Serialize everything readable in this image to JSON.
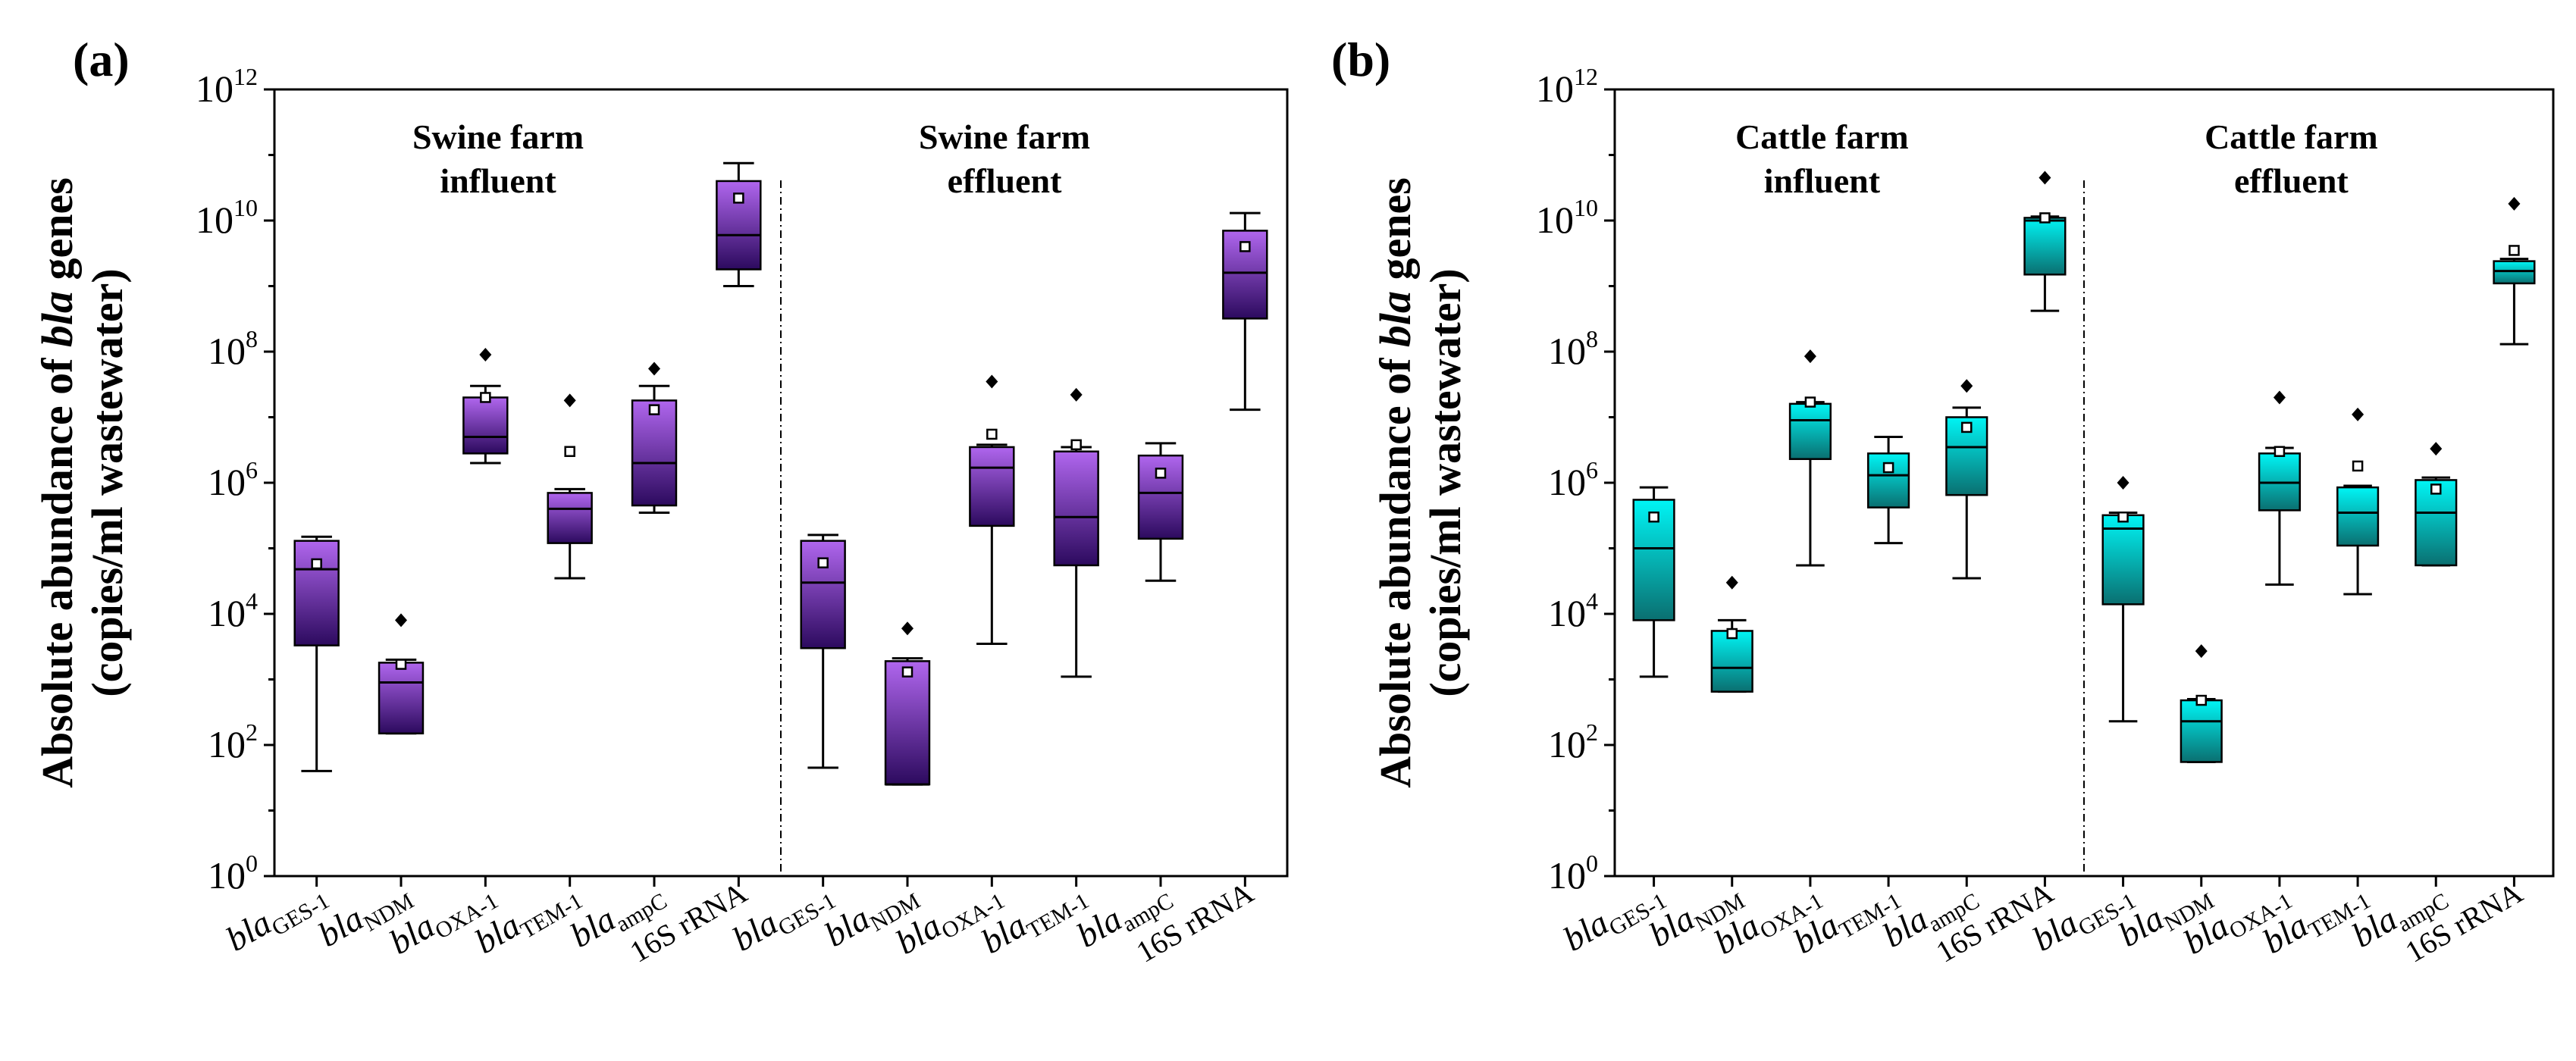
{
  "chart_data": [
    {
      "panel": "(a)",
      "type": "box",
      "scale": "log10",
      "ylim_exp": [
        0,
        12
      ],
      "ylabel": "Absolute abundance of bla genes (copies/ml wastewater)",
      "ylabel_parts": [
        "Absolute abundance of ",
        "bla",
        " genes"
      ],
      "ylabel_line2": "(copies/ml wastewater)",
      "yticks": [
        {
          "base": "10",
          "exp": "0"
        },
        {
          "base": "10",
          "exp": "2"
        },
        {
          "base": "10",
          "exp": "4"
        },
        {
          "base": "10",
          "exp": "6"
        },
        {
          "base": "10",
          "exp": "8"
        },
        {
          "base": "10",
          "exp": "10"
        },
        {
          "base": "10",
          "exp": "12"
        }
      ],
      "colors": {
        "top": "#b066ee",
        "bottom": "#2c0a5e"
      },
      "groups": [
        {
          "label_lines": [
            "Swine farm",
            "influent"
          ],
          "boxes": [
            {
              "label": "bla",
              "sub": "GES-1",
              "min": 40,
              "q1": 3300,
              "median": 48000,
              "q3": 130000,
              "max": 150000,
              "mean": 58000,
              "outliers": []
            },
            {
              "label": "bla",
              "sub": "NDM",
              "min": 150,
              "q1": 150,
              "median": 900,
              "q3": 1800,
              "max": 2000,
              "mean": 1700,
              "outliers": [
                8000
              ]
            },
            {
              "label": "bla",
              "sub": "OXA-1",
              "min": 2000000,
              "q1": 2800000,
              "median": 5000000,
              "q3": 20000000,
              "max": 30000000,
              "mean": 20000000,
              "outliers": [
                90000000
              ]
            },
            {
              "label": "bla",
              "sub": "TEM-1",
              "min": 35000,
              "q1": 120000,
              "median": 400000,
              "q3": 700000,
              "max": 800000,
              "mean": 3000000,
              "outliers": [
                18000000
              ]
            },
            {
              "label": "bla",
              "sub": "ampC",
              "min": 350000,
              "q1": 450000,
              "median": 2000000,
              "q3": 18000000,
              "max": 30000000,
              "mean": 13000000,
              "outliers": [
                55000000
              ]
            },
            {
              "label": "16S rRNA",
              "sub": "",
              "min": 1000000000,
              "q1": 1800000000,
              "median": 6000000000,
              "q3": 40000000000,
              "max": 75000000000,
              "mean": 22000000000,
              "outliers": []
            }
          ]
        },
        {
          "label_lines": [
            "Swine farm",
            "effluent"
          ],
          "boxes": [
            {
              "label": "bla",
              "sub": "GES-1",
              "min": 45,
              "q1": 3000,
              "median": 30000,
              "q3": 130000,
              "max": 160000,
              "mean": 60000,
              "outliers": []
            },
            {
              "label": "bla",
              "sub": "NDM",
              "min": 25,
              "q1": 25,
              "median": 25,
              "q3": 1900,
              "max": 2100,
              "mean": 1300,
              "outliers": [
                6000
              ]
            },
            {
              "label": "bla",
              "sub": "OXA-1",
              "min": 3500,
              "q1": 220000,
              "median": 1700000,
              "q3": 3500000,
              "max": 3800000,
              "mean": 5500000,
              "outliers": [
                35000000
              ]
            },
            {
              "label": "bla",
              "sub": "TEM-1",
              "min": 1100,
              "q1": 55000,
              "median": 300000,
              "q3": 3000000,
              "max": 3500000,
              "mean": 3800000,
              "outliers": [
                22000000
              ]
            },
            {
              "label": "bla",
              "sub": "ampC",
              "min": 32000,
              "q1": 140000,
              "median": 700000,
              "q3": 2600000,
              "max": 4000000,
              "mean": 1400000,
              "outliers": []
            },
            {
              "label": "16S rRNA",
              "sub": "",
              "min": 13000000,
              "q1": 320000000,
              "median": 1600000000,
              "q3": 7000000000,
              "max": 13000000000,
              "mean": 4000000000,
              "outliers": []
            }
          ]
        }
      ]
    },
    {
      "panel": "(b)",
      "type": "box",
      "scale": "log10",
      "ylim_exp": [
        0,
        12
      ],
      "ylabel": "Absolute abundance of bla genes (copies/ml wastewater)",
      "ylabel_parts": [
        "Absolute abundance of ",
        "bla",
        " genes"
      ],
      "ylabel_line2": "(copies/ml wastewater)",
      "yticks": [
        {
          "base": "10",
          "exp": "0"
        },
        {
          "base": "10",
          "exp": "2"
        },
        {
          "base": "10",
          "exp": "4"
        },
        {
          "base": "10",
          "exp": "6"
        },
        {
          "base": "10",
          "exp": "8"
        },
        {
          "base": "10",
          "exp": "10"
        },
        {
          "base": "10",
          "exp": "12"
        }
      ],
      "colors": {
        "top": "#00f5f5",
        "bottom": "#0a6f70"
      },
      "groups": [
        {
          "label_lines": [
            "Cattle farm",
            "influent"
          ],
          "boxes": [
            {
              "label": "bla",
              "sub": "GES-1",
              "min": 1100,
              "q1": 8000,
              "median": 100000,
              "q3": 550000,
              "max": 850000,
              "mean": 300000,
              "outliers": []
            },
            {
              "label": "bla",
              "sub": "NDM",
              "min": 650,
              "q1": 650,
              "median": 1500,
              "q3": 5500,
              "max": 8000,
              "mean": 5000,
              "outliers": [
                30000
              ]
            },
            {
              "label": "bla",
              "sub": "OXA-1",
              "min": 55000,
              "q1": 2300000,
              "median": 9000000,
              "q3": 16000000,
              "max": 17000000,
              "mean": 17000000,
              "outliers": [
                85000000
              ]
            },
            {
              "label": "bla",
              "sub": "TEM-1",
              "min": 120000,
              "q1": 420000,
              "median": 1300000,
              "q3": 2800000,
              "max": 5000000,
              "mean": 1700000,
              "outliers": []
            },
            {
              "label": "bla",
              "sub": "ampC",
              "min": 35000,
              "q1": 650000,
              "median": 3500000,
              "q3": 10000000,
              "max": 14000000,
              "mean": 7000000,
              "outliers": [
                30000000
              ]
            },
            {
              "label": "16S rRNA",
              "sub": "",
              "min": 420000000,
              "q1": 1500000000,
              "median": 10000000000,
              "q3": 11000000000,
              "max": 11500000000,
              "mean": 11000000000,
              "outliers": [
                45000000000
              ]
            }
          ]
        },
        {
          "label_lines": [
            "Cattle farm",
            "effluent"
          ],
          "boxes": [
            {
              "label": "bla",
              "sub": "GES-1",
              "min": 230,
              "q1": 14000,
              "median": 200000,
              "q3": 320000,
              "max": 350000,
              "mean": 300000,
              "outliers": [
                1000000
              ]
            },
            {
              "label": "bla",
              "sub": "NDM",
              "min": 55,
              "q1": 55,
              "median": 230,
              "q3": 480,
              "max": 500,
              "mean": 480,
              "outliers": [
                2700
              ]
            },
            {
              "label": "bla",
              "sub": "OXA-1",
              "min": 28000,
              "q1": 380000,
              "median": 1000000,
              "q3": 2800000,
              "max": 3400000,
              "mean": 3000000,
              "outliers": [
                20000000
              ]
            },
            {
              "label": "bla",
              "sub": "TEM-1",
              "min": 20000,
              "q1": 110000,
              "median": 350000,
              "q3": 850000,
              "max": 900000,
              "mean": 1800000,
              "outliers": [
                11000000
              ]
            },
            {
              "label": "bla",
              "sub": "ampC",
              "min": 55000,
              "q1": 55000,
              "median": 350000,
              "q3": 1100000,
              "max": 1200000,
              "mean": 800000,
              "outliers": [
                3300000
              ]
            },
            {
              "label": "16S rRNA",
              "sub": "",
              "min": 130000000,
              "q1": 1100000000,
              "median": 1700000000,
              "q3": 2400000000,
              "max": 2600000000,
              "mean": 3500000000,
              "outliers": [
                18000000000
              ]
            }
          ]
        }
      ]
    }
  ]
}
